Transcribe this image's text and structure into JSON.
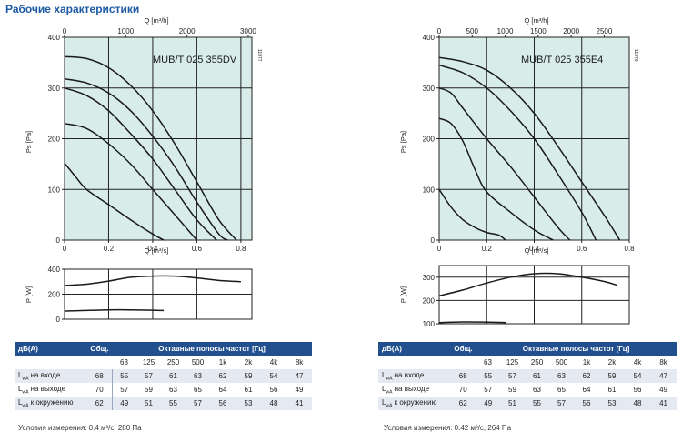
{
  "page_title": "Рабочие характеристики",
  "charts": [
    {
      "model": "MUB/T 025 355DV",
      "doc_code": "11977",
      "top_axis_label": "Q [m³/h]",
      "top_ticks": [
        "0",
        "1000",
        "2000",
        "3000"
      ],
      "bottom_axis_label": "Q [m³/s]",
      "bottom_ticks": [
        "0",
        "0.2",
        "0.4",
        "0.6",
        "0.8"
      ],
      "y_axis_label": "Ps [Pa]",
      "y_ticks": [
        "0",
        "100",
        "200",
        "300",
        "400"
      ],
      "power_axis_label": "P [W]",
      "power_ticks": [
        "0",
        "200",
        "400"
      ]
    },
    {
      "model": "MUB/T 025 355E4",
      "doc_code": "11976",
      "top_axis_label": "Q [m³/h]",
      "top_ticks": [
        "0",
        "500",
        "1000",
        "1500",
        "2000",
        "2500"
      ],
      "bottom_axis_label": "Q [m³/s]",
      "bottom_ticks": [
        "0",
        "0.2",
        "0.4",
        "0.6",
        "0.8"
      ],
      "y_axis_label": "Ps [Pa]",
      "y_ticks": [
        "0",
        "100",
        "200",
        "300",
        "400"
      ],
      "power_axis_label": "P [W]",
      "power_ticks": [
        "100",
        "200",
        "300"
      ]
    }
  ],
  "chart_data": [
    {
      "type": "line",
      "title": "MUB/T 025 355DV",
      "xlabel": "Q [m³/s]",
      "ylabel": "Ps [Pa]",
      "xlim": [
        0,
        0.85
      ],
      "ylim": [
        0,
        400
      ],
      "grid": true,
      "series": [
        {
          "x": [
            0,
            0.1,
            0.2,
            0.3,
            0.4,
            0.5,
            0.6,
            0.7,
            0.78
          ],
          "y": [
            362,
            358,
            340,
            305,
            255,
            190,
            115,
            40,
            0
          ]
        },
        {
          "x": [
            0,
            0.1,
            0.2,
            0.3,
            0.4,
            0.5,
            0.6,
            0.7,
            0.74
          ],
          "y": [
            318,
            310,
            290,
            255,
            205,
            145,
            75,
            12,
            0
          ]
        },
        {
          "x": [
            0,
            0.1,
            0.2,
            0.3,
            0.4,
            0.5,
            0.6,
            0.69
          ],
          "y": [
            300,
            285,
            255,
            210,
            160,
            100,
            40,
            0
          ]
        },
        {
          "x": [
            0,
            0.1,
            0.2,
            0.3,
            0.4,
            0.5,
            0.6
          ],
          "y": [
            230,
            220,
            190,
            150,
            100,
            50,
            0
          ]
        },
        {
          "x": [
            0,
            0.05,
            0.1,
            0.2,
            0.3,
            0.4,
            0.45
          ],
          "y": [
            152,
            125,
            100,
            70,
            40,
            12,
            0
          ]
        }
      ],
      "power": {
        "xlim": [
          0,
          0.85
        ],
        "ylim": [
          0,
          400
        ],
        "series": [
          {
            "x": [
              0,
              0.1,
              0.2,
              0.3,
              0.4,
              0.5,
              0.6,
              0.7,
              0.8
            ],
            "y": [
              270,
              280,
              305,
              335,
              345,
              345,
              330,
              310,
              300
            ]
          },
          {
            "x": [
              0,
              0.1,
              0.2,
              0.3,
              0.4,
              0.45
            ],
            "y": [
              65,
              70,
              75,
              75,
              72,
              70
            ]
          }
        ]
      },
      "noise_table": {
        "header_db": "дБ(A)",
        "header_total": "Общ.",
        "header_bands": "Октавные полосы частот [Гц]",
        "bands": [
          "63",
          "125",
          "250",
          "500",
          "1k",
          "2k",
          "4k",
          "8k"
        ],
        "rows": [
          {
            "label_main": "L",
            "label_sub": "wA",
            "label_rest": " на входе",
            "total": "68",
            "values": [
              "55",
              "57",
              "61",
              "63",
              "62",
              "59",
              "54",
              "47"
            ]
          },
          {
            "label_main": "L",
            "label_sub": "wA",
            "label_rest": " на выходе",
            "total": "70",
            "values": [
              "57",
              "59",
              "63",
              "65",
              "64",
              "61",
              "56",
              "49"
            ]
          },
          {
            "label_main": "L",
            "label_sub": "wA",
            "label_rest": " к окружению",
            "total": "62",
            "values": [
              "49",
              "51",
              "55",
              "57",
              "56",
              "53",
              "48",
              "41"
            ]
          }
        ]
      },
      "conditions": "Условия измерения: 0.4 м³/с, 280 Па"
    },
    {
      "type": "line",
      "title": "MUB/T 025 355E4",
      "xlabel": "Q [m³/s]",
      "ylabel": "Ps [Pa]",
      "xlim": [
        0,
        0.8
      ],
      "ylim": [
        0,
        400
      ],
      "grid": true,
      "series": [
        {
          "x": [
            0,
            0.1,
            0.2,
            0.3,
            0.4,
            0.5,
            0.6,
            0.7,
            0.76
          ],
          "y": [
            360,
            352,
            335,
            300,
            250,
            185,
            115,
            45,
            0
          ]
        },
        {
          "x": [
            0,
            0.1,
            0.2,
            0.3,
            0.4,
            0.5,
            0.6,
            0.66
          ],
          "y": [
            345,
            330,
            300,
            255,
            200,
            130,
            55,
            0
          ]
        },
        {
          "x": [
            0,
            0.05,
            0.1,
            0.2,
            0.3,
            0.4,
            0.5,
            0.55
          ],
          "y": [
            300,
            290,
            260,
            200,
            145,
            85,
            25,
            0
          ]
        },
        {
          "x": [
            0,
            0.05,
            0.1,
            0.15,
            0.2,
            0.3,
            0.4,
            0.48
          ],
          "y": [
            240,
            230,
            195,
            140,
            95,
            55,
            20,
            0
          ]
        },
        {
          "x": [
            0,
            0.05,
            0.1,
            0.15,
            0.2,
            0.25,
            0.28
          ],
          "y": [
            100,
            65,
            40,
            25,
            15,
            10,
            0
          ]
        }
      ],
      "power": {
        "xlim": [
          0,
          0.8
        ],
        "ylim": [
          100,
          350
        ],
        "series": [
          {
            "x": [
              0,
              0.1,
              0.2,
              0.3,
              0.4,
              0.5,
              0.6,
              0.7,
              0.75
            ],
            "y": [
              220,
              245,
              275,
              300,
              315,
              315,
              300,
              280,
              265
            ]
          },
          {
            "x": [
              0,
              0.1,
              0.2,
              0.28
            ],
            "y": [
              105,
              108,
              107,
              105
            ]
          }
        ]
      },
      "noise_table": {
        "header_db": "дБ(A)",
        "header_total": "Общ.",
        "header_bands": "Октавные полосы частот [Гц]",
        "bands": [
          "63",
          "125",
          "250",
          "500",
          "1k",
          "2k",
          "4k",
          "8k"
        ],
        "rows": [
          {
            "label_main": "L",
            "label_sub": "wA",
            "label_rest": " на входе",
            "total": "68",
            "values": [
              "55",
              "57",
              "61",
              "63",
              "62",
              "59",
              "54",
              "47"
            ]
          },
          {
            "label_main": "L",
            "label_sub": "wA",
            "label_rest": " на выходе",
            "total": "70",
            "values": [
              "57",
              "59",
              "63",
              "65",
              "64",
              "61",
              "56",
              "49"
            ]
          },
          {
            "label_main": "L",
            "label_sub": "wA",
            "label_rest": " к окружению",
            "total": "62",
            "values": [
              "49",
              "51",
              "55",
              "57",
              "56",
              "53",
              "48",
              "41"
            ]
          }
        ]
      },
      "conditions": "Условия измерения: 0.42 м³/с, 264 Па"
    }
  ]
}
